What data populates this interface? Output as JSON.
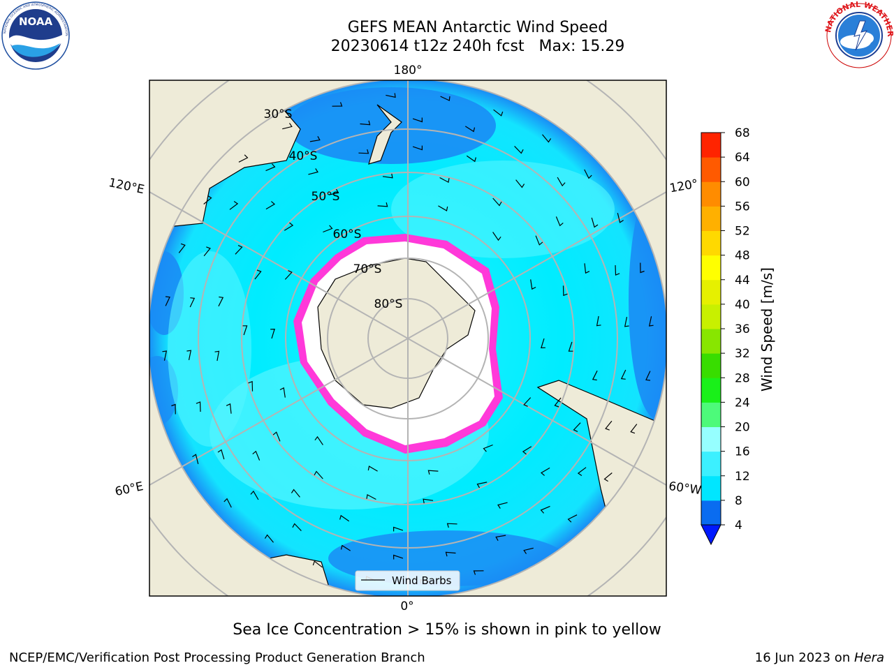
{
  "header": {
    "title": "GEFS MEAN Antarctic Wind Speed",
    "subtitle": "20230614 t12z 240h fcst   Max: 15.29"
  },
  "logos": {
    "left": "NOAA",
    "left_ring": "NATIONAL OCEANIC AND ATMOSPHERIC ADMINISTRATION · U.S. DEPARTMENT OF COMMERCE",
    "right_ring": "NATIONAL WEATHER SERVICE"
  },
  "map": {
    "projection": "south-polar-stereographic",
    "longitude_labels": {
      "top": "180°",
      "bottom": "0°",
      "upper_left": "120°E",
      "upper_right": "120°",
      "lower_left": "60°E",
      "lower_right": "60°W"
    },
    "latitude_labels": [
      "30°S",
      "40°S",
      "50°S",
      "60°S",
      "70°S",
      "80°S"
    ],
    "legend": {
      "entry": "Wind Barbs"
    }
  },
  "colorbar": {
    "label": "Wind Speed [m/s]",
    "ticks": [
      "4",
      "8",
      "12",
      "16",
      "20",
      "24",
      "28",
      "32",
      "36",
      "40",
      "44",
      "48",
      "52",
      "56",
      "60",
      "64",
      "68"
    ],
    "colors": [
      "#0a6cf0",
      "#00e6ff",
      "#3cf0ff",
      "#96ffff",
      "#4dfa7a",
      "#19f019",
      "#38dd00",
      "#88e600",
      "#c8f000",
      "#e6f000",
      "#ffff00",
      "#ffd900",
      "#ffb000",
      "#ff8c00",
      "#ff5a00",
      "#ff2400"
    ],
    "extend_low_color": "#0019ff",
    "cmin": 4,
    "cmax": 68
  },
  "caption": "Sea Ice Concentration > 15% is shown in pink to yellow",
  "footer": {
    "left": "NCEP/EMC/Verification Post Processing Product Generation Branch",
    "right_prefix": "16 Jun 2023 on ",
    "right_host": "Hera"
  }
}
